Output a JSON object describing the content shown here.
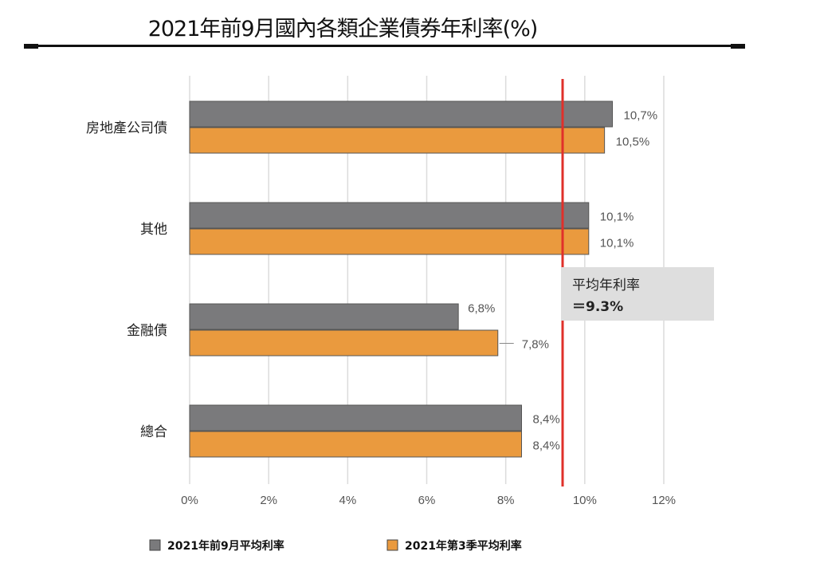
{
  "chart_data": {
    "type": "bar",
    "orientation": "horizontal",
    "title": "2021年前9月國內各類企業債券年利率(%)",
    "categories": [
      "房地產公司債",
      "其他",
      "金融債",
      "總合"
    ],
    "series": [
      {
        "name": "2021年前9月平均利率",
        "color": "#7a7a7c",
        "values": [
          10.7,
          10.1,
          6.8,
          8.4
        ],
        "labels": [
          "10,7%",
          "10,1%",
          "6,8%",
          "8,4%"
        ]
      },
      {
        "name": "2021年第3季平均利率",
        "color": "#ea9a3e",
        "values": [
          10.5,
          10.1,
          7.8,
          8.4
        ],
        "labels": [
          "10,5%",
          "10,1%",
          "7,8%",
          "8,4%"
        ]
      }
    ],
    "xlim": [
      0,
      12
    ],
    "xticks": [
      0,
      2,
      4,
      6,
      8,
      10,
      12
    ],
    "xtick_labels": [
      "0%",
      "2%",
      "4%",
      "6%",
      "8%",
      "10%",
      "12%"
    ],
    "grid": true,
    "legend_position": "bottom",
    "reference_line": {
      "value": 9.3,
      "color": "#e0302a",
      "label_line1": "平均年利率",
      "label_line2": "＝9.3%"
    }
  }
}
